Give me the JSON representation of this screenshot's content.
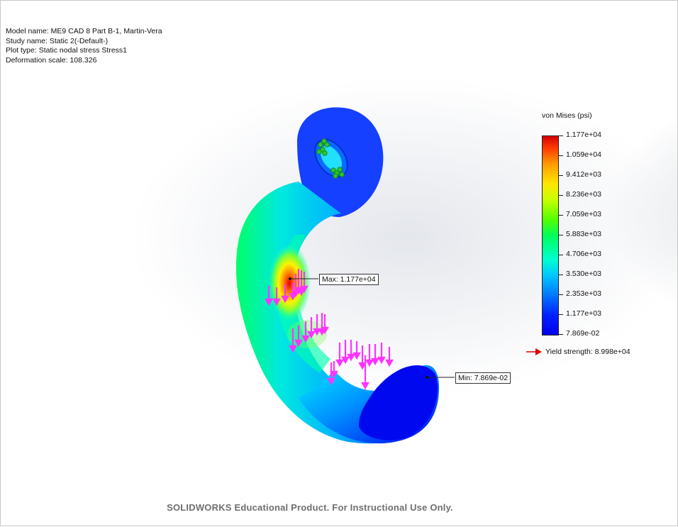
{
  "study_info": {
    "model_name": "Model name: ME9 CAD 8 Part B-1, Martin-Vera",
    "study_name": "Study name: Static 2(-Default-)",
    "plot_type": "Plot type: Static nodal stress Stress1",
    "deformation_scale": "Deformation scale: 108.326"
  },
  "legend": {
    "title": "von Mises (psi)",
    "ticks": [
      "1.177e+04",
      "1.059e+04",
      "9.412e+03",
      "8.236e+03",
      "7.059e+03",
      "5.883e+03",
      "4.706e+03",
      "3.530e+03",
      "2.353e+03",
      "1.177e+03",
      "7.869e-02"
    ],
    "max_color": "#d40000",
    "min_color": "#0000f0"
  },
  "yield_strength": {
    "label": "Yield strength: 8.998e+04",
    "arrow_color": "#e00000"
  },
  "callouts": {
    "max": "Max: 1.177e+04",
    "min": "Min: 7.869e-02"
  },
  "load_arrow_color": "#ff33ff",
  "fixture_color": "#2ec82e",
  "watermark": "SOLIDWORKS Educational Product. For Instructional Use Only."
}
